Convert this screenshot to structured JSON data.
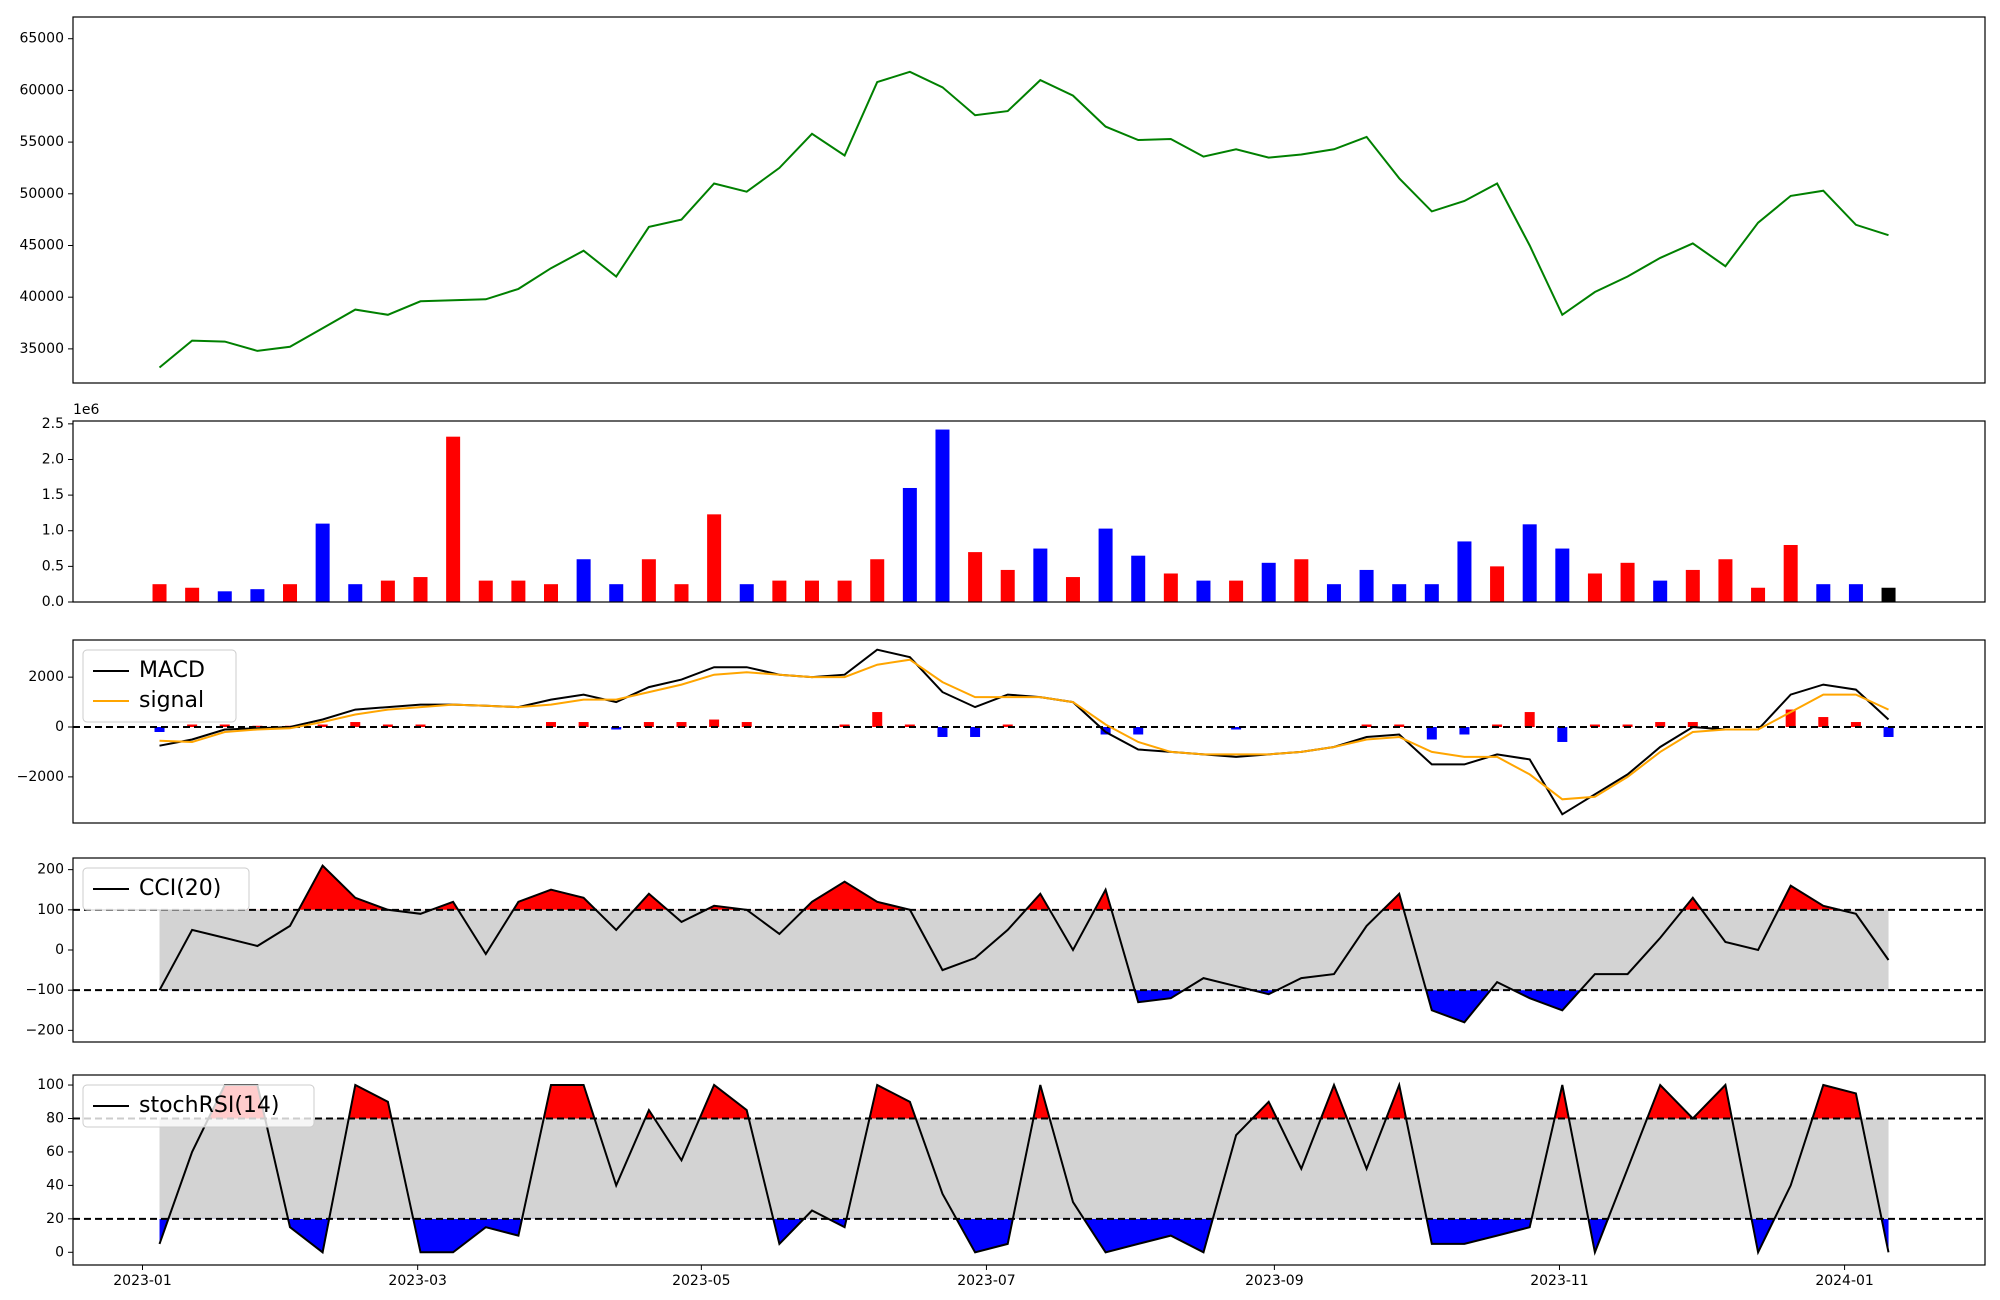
{
  "chart_data": [
    {
      "type": "line",
      "color": "green",
      "ylim": [
        31700,
        67100
      ],
      "yticks": [
        35000,
        40000,
        45000,
        50000,
        55000,
        60000,
        65000
      ],
      "values": [
        33200,
        35800,
        35700,
        34800,
        35200,
        37000,
        38800,
        38300,
        39600,
        39700,
        39800,
        40800,
        42800,
        44500,
        42000,
        46800,
        47500,
        51000,
        50200,
        52500,
        55800,
        53700,
        60800,
        61800,
        60300,
        57600,
        58000,
        61000,
        59500,
        56500,
        55200,
        55300,
        53600,
        54300,
        53500,
        53800,
        54300,
        55500,
        51500,
        48300,
        49300,
        51000,
        45000,
        38300,
        40500,
        42000,
        43800,
        45200,
        43000,
        47200,
        49800,
        50300,
        47000,
        46000
      ]
    },
    {
      "type": "bar",
      "ylim": [
        0,
        2540000
      ],
      "offset_label": "1e6",
      "yticks": [
        {
          "value": 0,
          "label": "0.0"
        },
        {
          "value": 500000,
          "label": "0.5"
        },
        {
          "value": 1000000,
          "label": "1.0"
        },
        {
          "value": 1500000,
          "label": "1.5"
        },
        {
          "value": 2000000,
          "label": "2.0"
        },
        {
          "value": 2500000,
          "label": "2.5"
        }
      ],
      "values": [
        250000,
        200000,
        150000,
        180000,
        250000,
        1100000,
        250000,
        300000,
        350000,
        2320000,
        300000,
        300000,
        250000,
        600000,
        250000,
        600000,
        250000,
        1230000,
        250000,
        300000,
        300000,
        300000,
        600000,
        1600000,
        2420000,
        700000,
        450000,
        750000,
        350000,
        1030000,
        650000,
        400000,
        300000,
        300000,
        550000,
        600000,
        250000,
        450000,
        250000,
        250000,
        850000,
        500000,
        1090000,
        750000,
        400000,
        550000,
        300000,
        450000,
        600000,
        200000,
        800000,
        250000,
        250000,
        200000
      ],
      "colors": [
        "red",
        "red",
        "blue",
        "blue",
        "red",
        "blue",
        "blue",
        "red",
        "red",
        "red",
        "red",
        "red",
        "red",
        "blue",
        "blue",
        "red",
        "red",
        "red",
        "blue",
        "red",
        "red",
        "red",
        "red",
        "blue",
        "blue",
        "red",
        "red",
        "blue",
        "red",
        "blue",
        "blue",
        "red",
        "blue",
        "red",
        "blue",
        "red",
        "blue",
        "blue",
        "blue",
        "blue",
        "blue",
        "red",
        "blue",
        "blue",
        "red",
        "red",
        "blue",
        "red",
        "red",
        "red",
        "red",
        "blue",
        "blue",
        "black"
      ]
    },
    {
      "type": "line",
      "ylim": [
        -3850,
        3490
      ],
      "levels": [
        0
      ],
      "legend": "upper left",
      "yticks": [
        {
          "value": -2000,
          "label": "−2000"
        },
        0,
        2000
      ],
      "series": [
        {
          "name": "MACD",
          "color": "black",
          "values": [
            -750,
            -500,
            -100,
            -50,
            0,
            300,
            700,
            800,
            900,
            900,
            850,
            800,
            1100,
            1300,
            1000,
            1600,
            1900,
            2400,
            2400,
            2100,
            2000,
            2100,
            3100,
            2800,
            1400,
            800,
            1300,
            1200,
            1000,
            -200,
            -900,
            -1000,
            -1100,
            -1200,
            -1100,
            -1000,
            -800,
            -400,
            -300,
            -1500,
            -1500,
            -1100,
            -1300,
            -3500,
            -2700,
            -1900,
            -800,
            0,
            -100,
            -100,
            1300,
            1700,
            1500,
            300
          ]
        },
        {
          "name": "signal",
          "color": "orange",
          "values": [
            -550,
            -600,
            -200,
            -100,
            -50,
            200,
            500,
            700,
            800,
            900,
            850,
            800,
            900,
            1100,
            1100,
            1400,
            1700,
            2100,
            2200,
            2100,
            2000,
            2000,
            2500,
            2700,
            1800,
            1200,
            1200,
            1200,
            1000,
            100,
            -600,
            -1000,
            -1100,
            -1100,
            -1100,
            -1000,
            -800,
            -500,
            -400,
            -1000,
            -1200,
            -1200,
            -1900,
            -2900,
            -2800,
            -2000,
            -1000,
            -200,
            -100,
            -100,
            600,
            1300,
            1300,
            700
          ]
        }
      ],
      "bars": {
        "positive_color": "red",
        "negative_color": "blue",
        "values": [
          -200,
          100,
          100,
          50,
          50,
          100,
          200,
          100,
          100,
          0,
          0,
          0,
          200,
          200,
          -100,
          200,
          200,
          300,
          200,
          0,
          0,
          100,
          600,
          100,
          -400,
          -400,
          100,
          0,
          0,
          -300,
          -300,
          0,
          0,
          -100,
          0,
          0,
          0,
          100,
          100,
          -500,
          -300,
          100,
          600,
          -600,
          100,
          100,
          200,
          200,
          0,
          0,
          700,
          400,
          200,
          -400
        ]
      }
    },
    {
      "type": "line",
      "ylim": [
        -229,
        229
      ],
      "levels": [
        -100,
        100
      ],
      "band_color": "lightgray",
      "upper_color": "red",
      "lower_color": "blue",
      "legend": "upper left",
      "yticks": [
        {
          "value": -200,
          "label": "−200"
        },
        {
          "value": -100,
          "label": "−100"
        },
        0,
        100,
        200
      ],
      "series": [
        {
          "name": "CCI(20)",
          "color": "black",
          "values": [
            -100,
            50,
            30,
            10,
            60,
            210,
            130,
            100,
            90,
            120,
            -10,
            120,
            150,
            130,
            50,
            140,
            70,
            110,
            100,
            40,
            120,
            170,
            120,
            100,
            -50,
            -20,
            50,
            140,
            0,
            150,
            -130,
            -120,
            -70,
            -90,
            -110,
            -70,
            -60,
            60,
            140,
            -150,
            -180,
            -80,
            -120,
            -150,
            -60,
            -60,
            30,
            130,
            20,
            0,
            160,
            110,
            90,
            -25
          ]
        }
      ]
    },
    {
      "type": "line",
      "ylim": [
        -7.6,
        106
      ],
      "levels": [
        20,
        80
      ],
      "band_color": "lightgray",
      "upper_color": "red",
      "lower_color": "blue",
      "legend": "upper left",
      "yticks": [
        0,
        20,
        40,
        60,
        80,
        100
      ],
      "series": [
        {
          "name": "stochRSI(14)",
          "color": "black",
          "values": [
            5,
            60,
            100,
            100,
            15,
            0,
            100,
            90,
            0,
            0,
            15,
            10,
            100,
            100,
            40,
            85,
            55,
            100,
            85,
            5,
            25,
            15,
            100,
            90,
            35,
            0,
            5,
            100,
            30,
            0,
            5,
            10,
            0,
            70,
            90,
            50,
            100,
            50,
            100,
            5,
            5,
            10,
            15,
            100,
            0,
            50,
            100,
            80,
            100,
            0,
            40,
            100,
            95,
            0
          ]
        }
      ],
      "xlim": [
        -0.49,
        12.99
      ],
      "xticks": [
        {
          "value": 0,
          "label": "2023-01"
        },
        {
          "value": 1.94,
          "label": "2023-03"
        },
        {
          "value": 3.94,
          "label": "2023-05"
        },
        {
          "value": 5.95,
          "label": "2023-07"
        },
        {
          "value": 7.98,
          "label": "2023-09"
        },
        {
          "value": 9.99,
          "label": "2023-11"
        },
        {
          "value": 12,
          "label": "2024-01"
        }
      ],
      "x": [
        0.12,
        0.35,
        0.58,
        0.81,
        1.04,
        1.27,
        1.5,
        1.73,
        1.96,
        2.19,
        2.42,
        2.65,
        2.88,
        3.11,
        3.34,
        3.57,
        3.8,
        4.03,
        4.26,
        4.49,
        4.72,
        4.95,
        5.18,
        5.41,
        5.64,
        5.87,
        6.1,
        6.33,
        6.56,
        6.79,
        7.02,
        7.25,
        7.48,
        7.71,
        7.94,
        8.17,
        8.4,
        8.63,
        8.86,
        9.09,
        9.32,
        9.55,
        9.78,
        10.01,
        10.24,
        10.47,
        10.7,
        10.93,
        11.16,
        11.39,
        11.62,
        11.85,
        12.08,
        12.31
      ]
    }
  ]
}
